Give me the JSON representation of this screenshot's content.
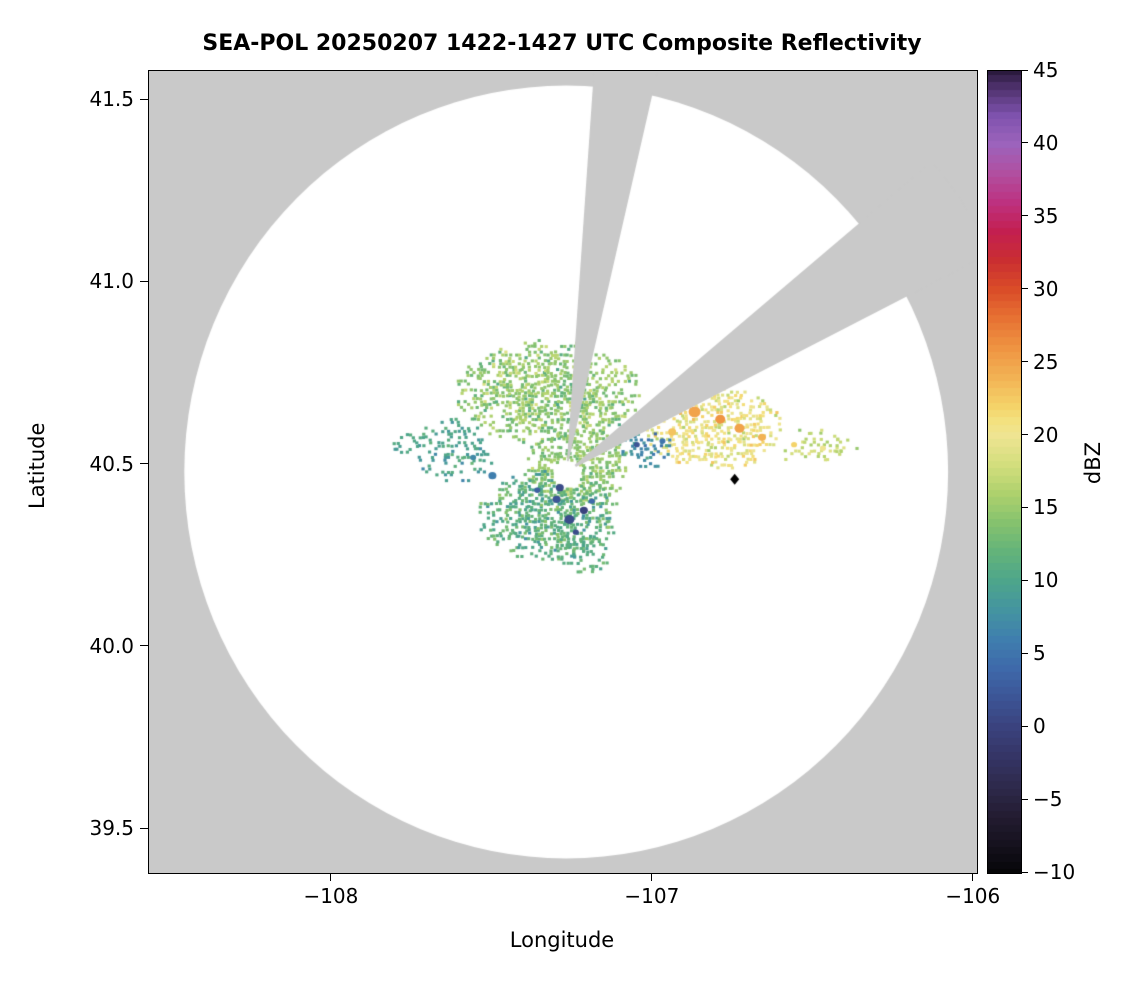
{
  "chart_data": {
    "type": "heatmap",
    "title": "SEA-POL 20250207 1422-1427 UTC Composite Reflectivity",
    "xlabel": "Longitude",
    "ylabel": "Latitude",
    "colorbar_label": "dBZ",
    "xlim": [
      -108.57,
      -105.99
    ],
    "ylim": [
      39.38,
      41.58
    ],
    "xtick_values": [
      -108,
      -107,
      -106
    ],
    "xtick_labels": [
      "−108",
      "−107",
      "−106"
    ],
    "ytick_values": [
      41.5,
      41.0,
      40.5,
      40.0,
      39.5
    ],
    "ytick_labels": [
      "41.5",
      "41.0",
      "40.5",
      "40.0",
      "39.5"
    ],
    "colorbar_range": [
      -10,
      45
    ],
    "colorbar_tick_values": [
      45,
      40,
      35,
      30,
      25,
      20,
      15,
      10,
      5,
      0,
      -5,
      -10
    ],
    "colorbar_tick_labels": [
      "45",
      "40",
      "35",
      "30",
      "25",
      "20",
      "15",
      "10",
      "5",
      "0",
      "−5",
      "−10"
    ],
    "background_outside_range": "#c9c9c9",
    "background_inside_range": "#ffffff",
    "radar": {
      "lon": -107.27,
      "lat": 40.48,
      "range_lon_deg": 1.19,
      "range_lat_deg": 1.06,
      "hole_radius_px": 11
    },
    "blocked_sectors_deg": [
      [
        4,
        13
      ],
      [
        50,
        63
      ]
    ],
    "marker": {
      "lon": -106.745,
      "lat": 40.46,
      "shape": "diamond",
      "color": "#000000"
    },
    "colormap": [
      [
        -10,
        "#060608"
      ],
      [
        -8,
        "#16121f"
      ],
      [
        -6,
        "#241d33"
      ],
      [
        -4,
        "#2e2a4d"
      ],
      [
        -2,
        "#353566"
      ],
      [
        0,
        "#3a427e"
      ],
      [
        2,
        "#3c5596"
      ],
      [
        4,
        "#3e69aa"
      ],
      [
        6,
        "#3f7eae"
      ],
      [
        8,
        "#4494a0"
      ],
      [
        10,
        "#4da58b"
      ],
      [
        12,
        "#63b37a"
      ],
      [
        14,
        "#85c26e"
      ],
      [
        16,
        "#aed16d"
      ],
      [
        18,
        "#d3de7d"
      ],
      [
        20,
        "#efe492"
      ],
      [
        21,
        "#f3e17f"
      ],
      [
        22,
        "#f4d369"
      ],
      [
        24,
        "#f2b254"
      ],
      [
        26,
        "#ef9442"
      ],
      [
        28,
        "#e77233"
      ],
      [
        30,
        "#da4d28"
      ],
      [
        32,
        "#ca2e31"
      ],
      [
        34,
        "#c31f50"
      ],
      [
        36,
        "#bd3180"
      ],
      [
        38,
        "#b14fa0"
      ],
      [
        40,
        "#9c63bc"
      ],
      [
        42,
        "#7e52ad"
      ],
      [
        44,
        "#4b2f68"
      ],
      [
        45,
        "#2b1a3e"
      ]
    ],
    "echo_cell_deg": [
      0.01,
      0.008
    ],
    "echo_regions": [
      {
        "name": "nw-fan",
        "cx": -107.33,
        "cy": 40.7,
        "rx": 0.29,
        "ry": 0.145,
        "density": 0.78,
        "vmin": 9,
        "vmax": 19,
        "seed": 11
      },
      {
        "name": "west-scatter",
        "cx": -107.62,
        "cy": 40.54,
        "rx": 0.13,
        "ry": 0.09,
        "density": 0.45,
        "vmin": 6,
        "vmax": 13,
        "seed": 22
      },
      {
        "name": "central-ring",
        "cx": -107.24,
        "cy": 40.5,
        "rx": 0.16,
        "ry": 0.11,
        "density": 0.85,
        "vmin": 10,
        "vmax": 18,
        "seed": 33
      },
      {
        "name": "south-blob",
        "cx": -107.33,
        "cy": 40.36,
        "rx": 0.22,
        "ry": 0.125,
        "density": 0.82,
        "vmin": 6,
        "vmax": 16,
        "seed": 44
      },
      {
        "name": "south-tail",
        "cx": -107.22,
        "cy": 40.26,
        "rx": 0.08,
        "ry": 0.06,
        "density": 0.5,
        "vmin": 8,
        "vmax": 14,
        "seed": 99
      },
      {
        "name": "east-blob",
        "cx": -106.82,
        "cy": 40.6,
        "rx": 0.22,
        "ry": 0.115,
        "density": 0.7,
        "vmin": 14,
        "vmax": 24,
        "seed": 55
      },
      {
        "name": "east-tail",
        "cx": -106.52,
        "cy": 40.55,
        "rx": 0.12,
        "ry": 0.05,
        "density": 0.35,
        "vmin": 14,
        "vmax": 20,
        "seed": 66
      },
      {
        "name": "east-dots",
        "cx": -106.41,
        "cy": 40.55,
        "rx": 0.05,
        "ry": 0.028,
        "density": 0.45,
        "vmin": 14,
        "vmax": 19,
        "seed": 111
      },
      {
        "name": "wedge-edge",
        "cx": -107.02,
        "cy": 40.545,
        "rx": 0.09,
        "ry": 0.055,
        "density": 0.55,
        "vmin": 3,
        "vmax": 11,
        "seed": 77
      },
      {
        "name": "west-dots",
        "cx": -107.76,
        "cy": 40.555,
        "rx": 0.06,
        "ry": 0.035,
        "density": 0.4,
        "vmin": 8,
        "vmax": 12,
        "seed": 88
      }
    ],
    "echo_spots": [
      {
        "lon": -106.87,
        "lat": 40.645,
        "r": 6,
        "value": 25
      },
      {
        "lon": -106.79,
        "lat": 40.625,
        "r": 5,
        "value": 26
      },
      {
        "lon": -106.73,
        "lat": 40.6,
        "r": 5,
        "value": 25
      },
      {
        "lon": -106.94,
        "lat": 40.59,
        "r": 4,
        "value": 23
      },
      {
        "lon": -106.66,
        "lat": 40.575,
        "r": 4,
        "value": 24
      },
      {
        "lon": -106.56,
        "lat": 40.555,
        "r": 3,
        "value": 22
      },
      {
        "lon": -106.47,
        "lat": 40.545,
        "r": 3,
        "value": 20
      },
      {
        "lon": -107.26,
        "lat": 40.35,
        "r": 5,
        "value": 1
      },
      {
        "lon": -107.3,
        "lat": 40.405,
        "r": 4,
        "value": 2
      },
      {
        "lon": -107.215,
        "lat": 40.375,
        "r": 4,
        "value": 0
      },
      {
        "lon": -107.36,
        "lat": 40.43,
        "r": 3,
        "value": 3
      },
      {
        "lon": -107.24,
        "lat": 40.315,
        "r": 3,
        "value": 1
      },
      {
        "lon": -107.19,
        "lat": 40.4,
        "r": 3,
        "value": 4
      },
      {
        "lon": -107.29,
        "lat": 40.437,
        "r": 4,
        "value": 1
      },
      {
        "lon": -107.05,
        "lat": 40.555,
        "r": 3,
        "value": 2
      },
      {
        "lon": -106.97,
        "lat": 40.565,
        "r": 3,
        "value": 5
      },
      {
        "lon": -107.5,
        "lat": 40.47,
        "r": 4,
        "value": 6
      },
      {
        "lon": -107.56,
        "lat": 40.52,
        "r": 3,
        "value": 7
      }
    ]
  }
}
